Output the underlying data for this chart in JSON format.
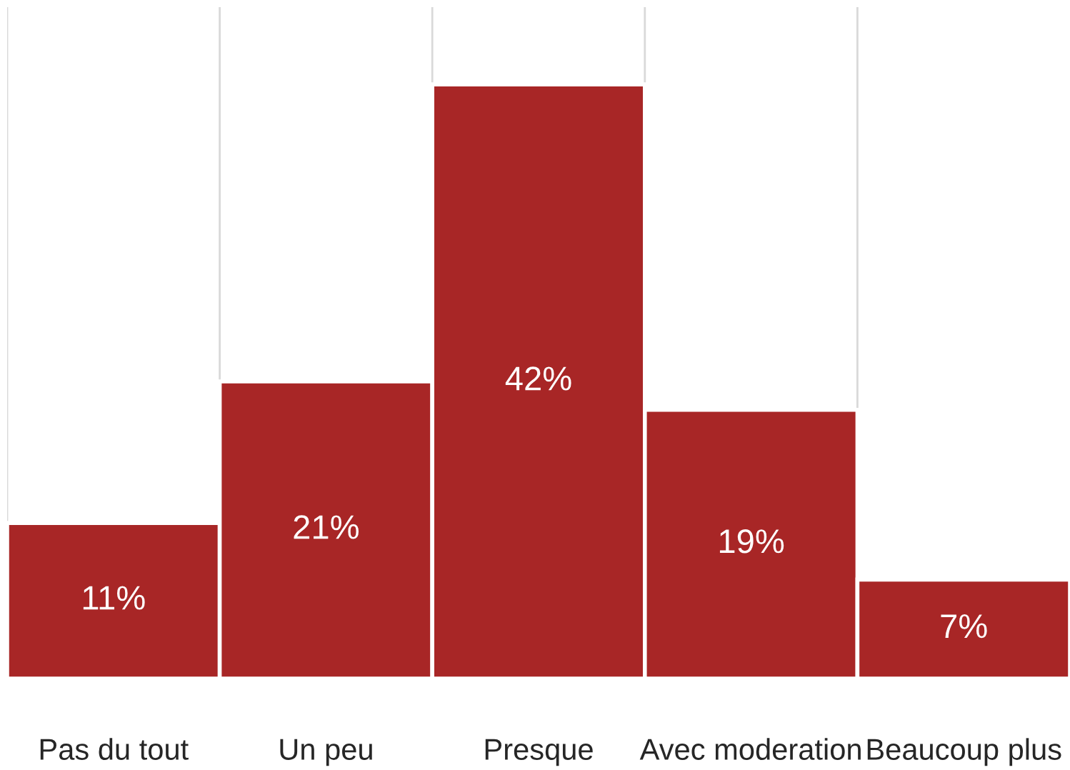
{
  "chart_data": {
    "type": "bar",
    "categories": [
      "Pas du tout",
      "Un peu",
      "Presque",
      "Avec moderation",
      "Beaucoup plus"
    ],
    "values": [
      11,
      21,
      42,
      19,
      7
    ],
    "value_labels": [
      "11%",
      "21%",
      "42%",
      "19%",
      "7%"
    ],
    "color": "#a82626",
    "grid": "x"
  }
}
